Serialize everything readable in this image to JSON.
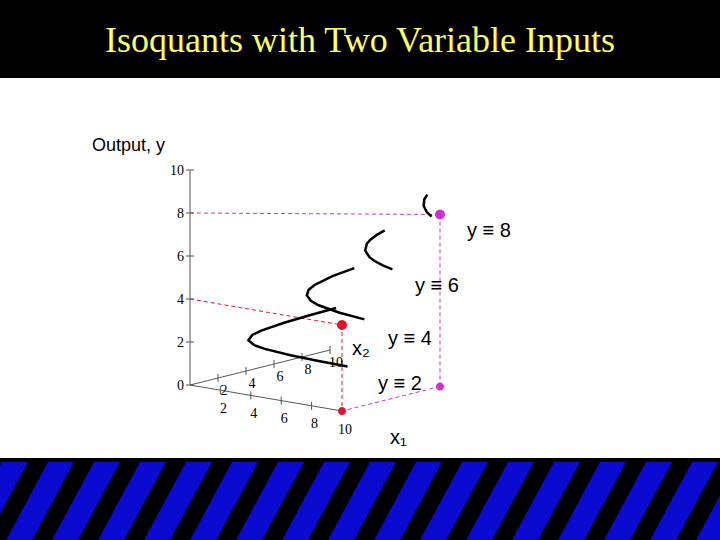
{
  "header": {
    "title": "Isoquants with Two Variable Inputs"
  },
  "chart_data": {
    "type": "line3d",
    "y_label": "Output, y",
    "x1_label": "x₁",
    "x2_label": "x₂",
    "ylim": [
      0,
      10
    ],
    "yticks": [
      0,
      2,
      4,
      6,
      8,
      10
    ],
    "x1lim": [
      0,
      10
    ],
    "x1ticks": [
      2,
      4,
      6,
      8,
      10
    ],
    "x2lim": [
      0,
      10
    ],
    "x2ticks": [
      2,
      4,
      6,
      8,
      10
    ],
    "series": [
      {
        "name": "y ≡ 2",
        "color": "#000000",
        "y": 2,
        "x1": [
          0.4,
          0.5,
          0.67,
          1,
          1.33,
          2,
          3,
          4,
          6,
          8,
          10
        ],
        "x2": [
          10,
          8,
          6,
          4,
          3,
          2,
          1.33,
          1,
          0.67,
          0.5,
          0.4
        ]
      },
      {
        "name": "y ≡ 4",
        "color": "#000000",
        "y": 4,
        "x1": [
          1.6,
          2,
          2.67,
          3.2,
          4,
          5,
          6,
          8,
          10
        ],
        "x2": [
          10,
          8,
          6,
          5,
          4,
          3.2,
          2.67,
          2,
          1.6
        ]
      },
      {
        "name": "y ≡ 6",
        "color": "#000000",
        "y": 6,
        "x1": [
          3.6,
          4,
          4.5,
          5,
          6,
          7.2,
          8,
          9,
          10
        ],
        "x2": [
          10,
          9,
          8,
          7.2,
          6,
          5,
          4.5,
          4,
          3.6
        ]
      },
      {
        "name": "y ≡ 8",
        "color": "#000000",
        "y": 8,
        "x1": [
          6.4,
          7,
          8,
          9.14,
          10
        ],
        "x2": [
          10,
          9.14,
          8,
          7,
          6.4
        ]
      }
    ],
    "points": [
      {
        "x1": 10,
        "x2": 0,
        "y": 4,
        "color": "#e8112d"
      },
      {
        "x1": 10,
        "x2": 7,
        "y": 8,
        "color": "#cc33cc"
      }
    ]
  }
}
